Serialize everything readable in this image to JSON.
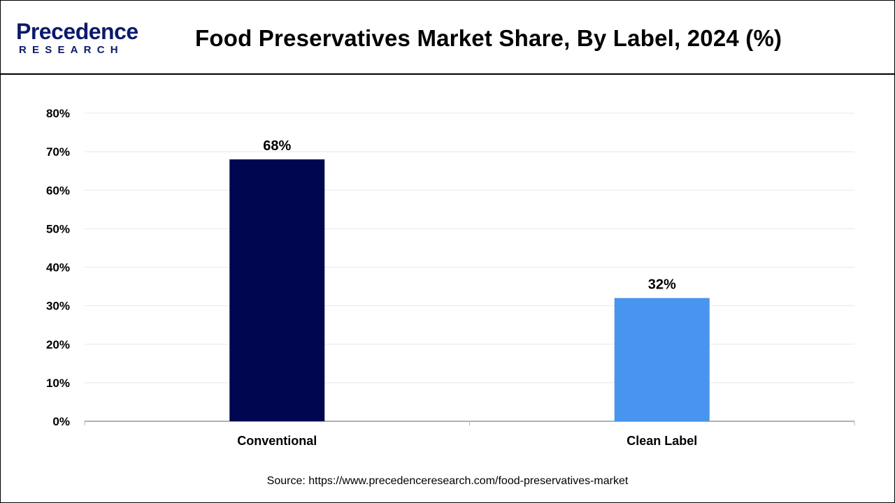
{
  "header": {
    "logo_main": "Precedence",
    "logo_sub": "RESEARCH",
    "title": "Food Preservatives Market Share, By Label, 2024 (%)"
  },
  "source": "Source: https://www.precedenceresearch.com/food-preservatives-market",
  "colors": {
    "logo": "#0b1a6b",
    "conventional": "#000650",
    "clean_label": "#4894ee",
    "grid": "#e8e8e8",
    "axis": "#b0b0b0"
  },
  "chart_data": {
    "type": "bar",
    "title": "Food Preservatives Market Share, By Label, 2024 (%)",
    "categories": [
      "Conventional",
      "Clean Label"
    ],
    "values": [
      68,
      32
    ],
    "data_labels": [
      "68%",
      "32%"
    ],
    "bar_colors": [
      "#000650",
      "#4894ee"
    ],
    "ylim": [
      0,
      80
    ],
    "yticks": [
      0,
      10,
      20,
      30,
      40,
      50,
      60,
      70,
      80
    ],
    "ytick_labels": [
      "0%",
      "10%",
      "20%",
      "30%",
      "40%",
      "50%",
      "60%",
      "70%",
      "80%"
    ],
    "xlabel": "",
    "ylabel": "",
    "grid": true,
    "legend": "none"
  }
}
